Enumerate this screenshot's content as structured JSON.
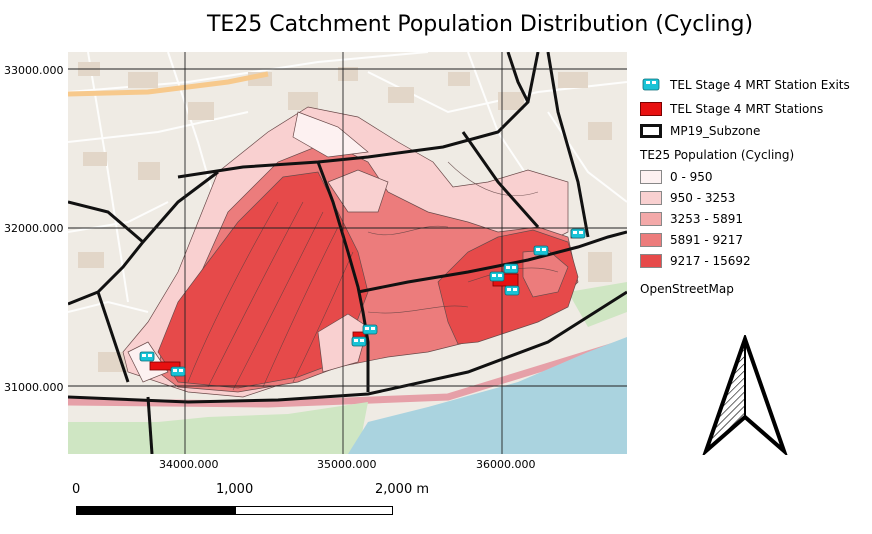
{
  "title": "TE25 Catchment Population Distribution (Cycling)",
  "axes": {
    "y_ticks": [
      "33000.000",
      "32000.000",
      "31000.000"
    ],
    "x_ticks": [
      "34000.000",
      "35000.000",
      "36000.000"
    ]
  },
  "legend": {
    "exits_label": "TEL Stage 4 MRT Station Exits",
    "stations_label": "TEL Stage 4 MRT Stations",
    "subzone_label": "MP19_Subzone",
    "population_heading": "TE25 Population (Cycling)",
    "classes": [
      {
        "label": "0 - 950",
        "color": "#fdf1f1"
      },
      {
        "label": "950 - 3253",
        "color": "#f9d0d0"
      },
      {
        "label": "3253 - 5891",
        "color": "#f3a9a9"
      },
      {
        "label": "5891 - 9217",
        "color": "#ec7c7c"
      },
      {
        "label": "9217 - 15692",
        "color": "#e64a4a"
      }
    ],
    "basemap_label": "OpenStreetMap"
  },
  "scale_bar": {
    "labels": [
      "0",
      "1,000",
      "2,000 m"
    ]
  },
  "colors": {
    "station_fill": "#e81010",
    "exit_icon": "#19c3d6",
    "sea": "#aad3df",
    "land": "#f2efe9"
  },
  "icons": {
    "exit": "train-icon",
    "north": "north-arrow-icon"
  }
}
